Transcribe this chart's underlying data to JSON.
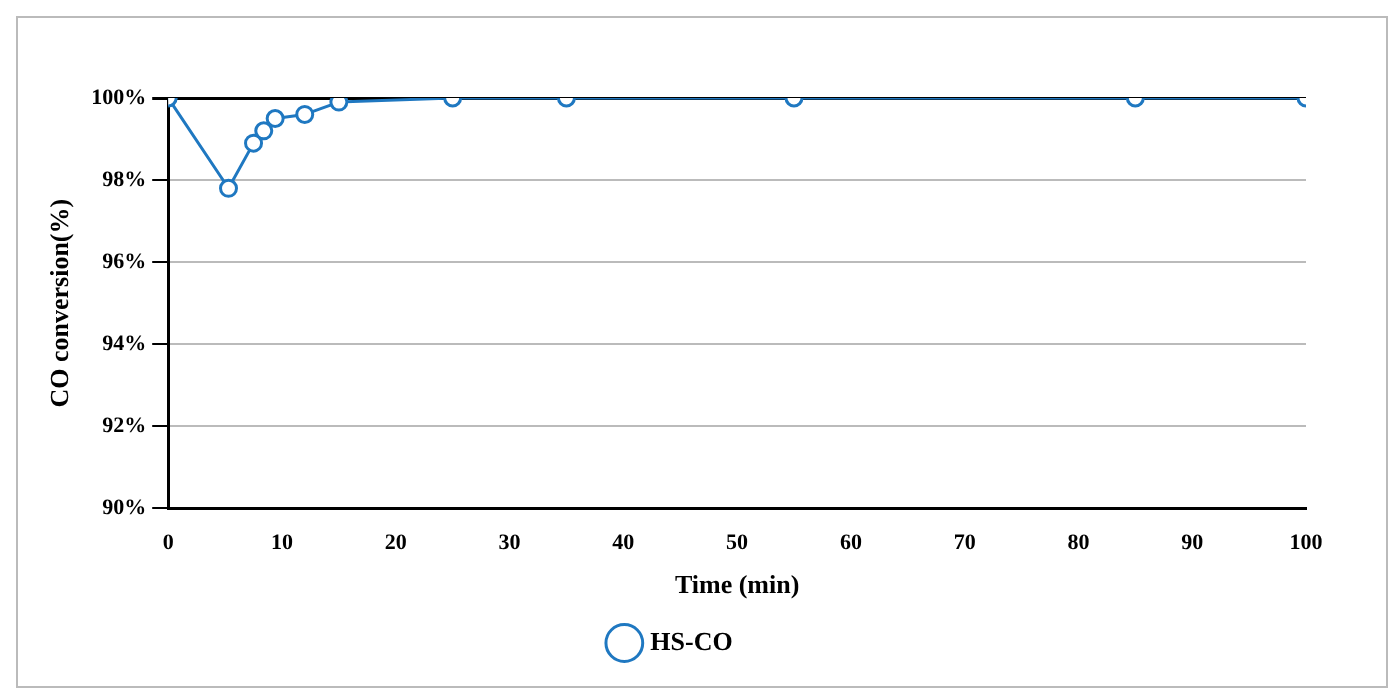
{
  "chart_data": {
    "type": "line",
    "xlabel": "Time (min)",
    "ylabel": "CO conversion(%)",
    "series": [
      {
        "name": "HS-CO",
        "color": "#1f78c1",
        "x": [
          0,
          5.3,
          7.5,
          8.4,
          9.4,
          12,
          15,
          25,
          35,
          55,
          85,
          100
        ],
        "values": [
          100,
          97.8,
          98.9,
          99.2,
          99.5,
          99.6,
          99.9,
          100,
          100,
          100,
          100,
          100
        ]
      }
    ],
    "xlim": [
      0,
      100
    ],
    "xticks": [
      0,
      10,
      20,
      30,
      40,
      50,
      60,
      70,
      80,
      90,
      100
    ],
    "ylim": [
      90,
      100
    ],
    "yticks": [
      {
        "value": 90,
        "label": "90%"
      },
      {
        "value": 92,
        "label": "92%"
      },
      {
        "value": 94,
        "label": "94%"
      },
      {
        "value": 96,
        "label": "96%"
      },
      {
        "value": 98,
        "label": "98%"
      },
      {
        "value": 100,
        "label": "100%"
      }
    ],
    "grid": "y",
    "legend": "bottom",
    "marker": "circle",
    "line_style": "solid"
  }
}
